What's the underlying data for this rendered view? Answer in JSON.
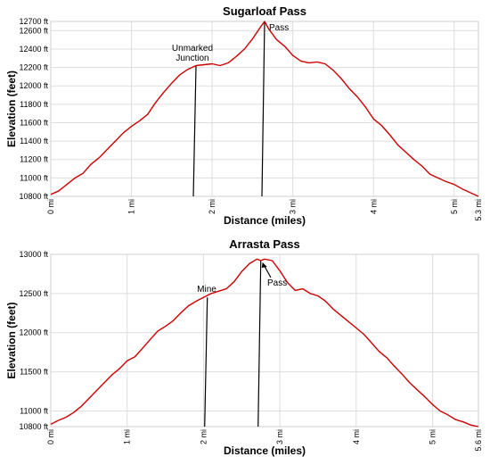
{
  "colors": {
    "series": "#cc0000",
    "grid": "#dddddd",
    "text": "#000000"
  },
  "chart_data": [
    {
      "type": "line",
      "title": "Sugarloaf Pass",
      "xlabel": "Distance (miles)",
      "ylabel": "Elevation (feet)",
      "xlim": [
        0,
        5.3
      ],
      "ylim": [
        10800,
        12700
      ],
      "x_ticks": [
        0,
        1,
        2,
        3,
        4,
        5,
        5.3
      ],
      "x_tick_labels": [
        "0 mi",
        "1 mi",
        "2 mi",
        "3 mi",
        "4 mi",
        "5 mi",
        "5.3 mi"
      ],
      "y_ticks": [
        10800,
        11000,
        11200,
        11400,
        11600,
        11800,
        12000,
        12200,
        12400,
        12600,
        12700
      ],
      "y_tick_labels": [
        "10800 ft",
        "11000 ft",
        "11200 ft",
        "11400 ft",
        "11600 ft",
        "11800 ft",
        "12000 ft",
        "12200 ft",
        "12400 ft",
        "12600 ft",
        "12700 ft"
      ],
      "grid": true,
      "series": [
        {
          "x": [
            0,
            0.1,
            0.2,
            0.3,
            0.4,
            0.5,
            0.6,
            0.7,
            0.8,
            0.9,
            1.0,
            1.1,
            1.2,
            1.3,
            1.4,
            1.5,
            1.6,
            1.7,
            1.8,
            1.9,
            2.0,
            2.1,
            2.2,
            2.3,
            2.4,
            2.5,
            2.6,
            2.65,
            2.7,
            2.8,
            2.9,
            3.0,
            3.1,
            3.2,
            3.3,
            3.4,
            3.5,
            3.6,
            3.7,
            3.8,
            3.9,
            4.0,
            4.1,
            4.2,
            4.3,
            4.4,
            4.5,
            4.6,
            4.7,
            4.8,
            4.9,
            5.0,
            5.1,
            5.2,
            5.3
          ],
          "y": [
            10820,
            10860,
            10930,
            11000,
            11050,
            11150,
            11220,
            11310,
            11400,
            11490,
            11560,
            11620,
            11690,
            11820,
            11930,
            12030,
            12120,
            12180,
            12220,
            12230,
            12240,
            12220,
            12250,
            12320,
            12400,
            12510,
            12640,
            12700,
            12620,
            12500,
            12430,
            12330,
            12270,
            12250,
            12260,
            12240,
            12170,
            12080,
            11970,
            11880,
            11770,
            11640,
            11570,
            11470,
            11360,
            11280,
            11200,
            11130,
            11040,
            11000,
            10960,
            10930,
            10880,
            10840,
            10800
          ]
        }
      ],
      "annotations": [
        {
          "lines": [
            "Unmarked",
            "Junction"
          ],
          "x": 1.8,
          "y": 12220
        },
        {
          "lines": [
            "Pass"
          ],
          "x": 2.65,
          "y": 12700
        }
      ]
    },
    {
      "type": "line",
      "title": "Arrasta Pass",
      "xlabel": "Distance (miles)",
      "ylabel": "Elevation (feet)",
      "xlim": [
        0,
        5.6
      ],
      "ylim": [
        10800,
        13000
      ],
      "x_ticks": [
        0,
        1,
        2,
        3,
        4,
        5,
        5.6
      ],
      "x_tick_labels": [
        "0 mi",
        "1 mi",
        "2 mi",
        "3 mi",
        "4 mi",
        "5 mi",
        "5.6 mi"
      ],
      "y_ticks": [
        10800,
        11000,
        11500,
        12000,
        12500,
        13000
      ],
      "y_tick_labels": [
        "10800 ft",
        "11000 ft",
        "11500 ft",
        "12000 ft",
        "12500 ft",
        "13000 ft"
      ],
      "grid": true,
      "series": [
        {
          "x": [
            0,
            0.1,
            0.2,
            0.3,
            0.4,
            0.5,
            0.6,
            0.7,
            0.8,
            0.9,
            1.0,
            1.1,
            1.2,
            1.3,
            1.4,
            1.5,
            1.6,
            1.7,
            1.8,
            1.9,
            2.0,
            2.1,
            2.2,
            2.3,
            2.4,
            2.5,
            2.6,
            2.7,
            2.75,
            2.8,
            2.9,
            3.0,
            3.1,
            3.2,
            3.3,
            3.4,
            3.5,
            3.6,
            3.7,
            3.8,
            3.9,
            4.0,
            4.1,
            4.2,
            4.3,
            4.4,
            4.5,
            4.6,
            4.7,
            4.8,
            4.9,
            5.0,
            5.1,
            5.2,
            5.3,
            5.4,
            5.5,
            5.6
          ],
          "y": [
            10830,
            10880,
            10920,
            10980,
            11060,
            11160,
            11260,
            11360,
            11460,
            11540,
            11640,
            11690,
            11800,
            11910,
            12020,
            12080,
            12150,
            12250,
            12340,
            12400,
            12450,
            12500,
            12530,
            12560,
            12650,
            12780,
            12880,
            12940,
            12920,
            12940,
            12920,
            12790,
            12640,
            12540,
            12560,
            12500,
            12470,
            12400,
            12300,
            12220,
            12140,
            12060,
            11980,
            11870,
            11760,
            11680,
            11570,
            11470,
            11360,
            11270,
            11180,
            11080,
            11000,
            10950,
            10890,
            10860,
            10820,
            10800
          ]
        }
      ],
      "annotations": [
        {
          "lines": [
            "Mine"
          ],
          "x": 2.05,
          "y": 12450
        },
        {
          "lines": [
            "Pass"
          ],
          "x": 2.75,
          "y": 12920
        }
      ]
    }
  ]
}
